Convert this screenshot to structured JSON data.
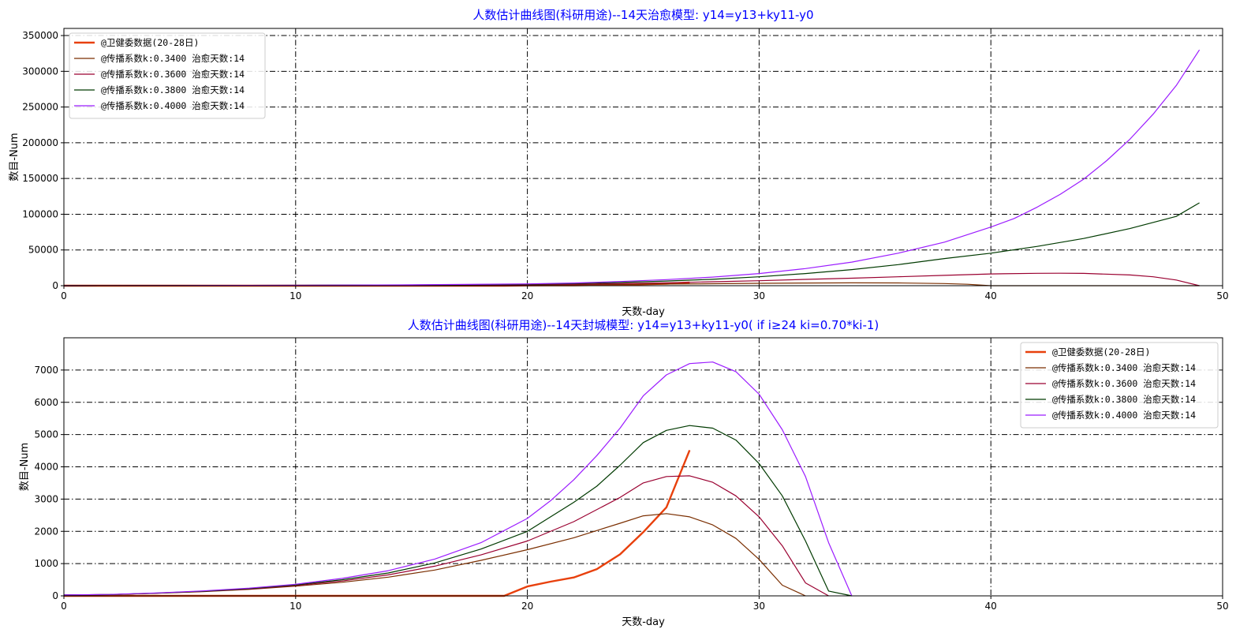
{
  "chart_data": [
    {
      "type": "line",
      "title": "人数估计曲线图(科研用途)--14天治愈模型: y14=y13+ky11-y0",
      "xlabel": "天数-day",
      "ylabel": "数目-Num",
      "xlim": [
        0,
        50
      ],
      "ylim": [
        0,
        360000
      ],
      "xticks": [
        0,
        10,
        20,
        30,
        40,
        50
      ],
      "yticks": [
        0,
        50000,
        100000,
        150000,
        200000,
        250000,
        300000,
        350000
      ],
      "grid": true,
      "legend_position": "top-left",
      "series": [
        {
          "name": "@卫健委数据(20-28日)",
          "color": "#e8400c",
          "width": 2.4,
          "x": [
            0,
            1,
            2,
            3,
            4,
            5,
            6,
            7,
            8,
            9,
            10,
            11,
            12,
            13,
            14,
            15,
            16,
            17,
            18,
            19,
            20,
            21,
            22,
            23,
            24,
            25,
            26,
            27
          ],
          "y": [
            0,
            0,
            0,
            0,
            0,
            0,
            0,
            0,
            0,
            0,
            0,
            0,
            0,
            0,
            0,
            0,
            0,
            0,
            0,
            0,
            291,
            440,
            571,
            830,
            1287,
            1975,
            2744,
            4515
          ]
        },
        {
          "name": "@传播系数k:0.3400 治愈天数:14",
          "color": "#7a2e00",
          "width": 1.2,
          "x": [
            0,
            5,
            10,
            15,
            20,
            22,
            24,
            26,
            28,
            30,
            32,
            34,
            36,
            38,
            39,
            40,
            42,
            44,
            46,
            48,
            49
          ],
          "y": [
            0,
            200,
            400,
            700,
            1100,
            1400,
            1800,
            2300,
            2800,
            3300,
            3700,
            4000,
            3900,
            3000,
            2000,
            0,
            0,
            0,
            0,
            0,
            0
          ]
        },
        {
          "name": "@传播系数k:0.3600 治愈天数:14",
          "color": "#9a0030",
          "width": 1.2,
          "x": [
            0,
            5,
            10,
            15,
            20,
            22,
            24,
            26,
            28,
            30,
            32,
            34,
            36,
            38,
            40,
            42,
            43,
            44,
            46,
            47,
            48,
            49
          ],
          "y": [
            0,
            200,
            400,
            800,
            1500,
            2000,
            3000,
            4000,
            5500,
            7000,
            8800,
            10500,
            12500,
            14500,
            16500,
            17300,
            17500,
            17200,
            15000,
            12500,
            8000,
            0
          ]
        },
        {
          "name": "@传播系数k:0.3800 治愈天数:14",
          "color": "#003a00",
          "width": 1.2,
          "x": [
            0,
            5,
            10,
            15,
            20,
            22,
            24,
            26,
            28,
            30,
            32,
            34,
            36,
            38,
            40,
            42,
            44,
            46,
            48,
            49
          ],
          "y": [
            0,
            200,
            500,
            1000,
            2000,
            3000,
            4500,
            6500,
            9000,
            12500,
            17000,
            22500,
            29500,
            38000,
            45500,
            55000,
            66000,
            80000,
            97000,
            116000
          ]
        },
        {
          "name": "@传播系数k:0.4000 治愈天数:14",
          "color": "#9b1cff",
          "width": 1.2,
          "x": [
            0,
            5,
            10,
            15,
            20,
            22,
            24,
            26,
            28,
            30,
            32,
            34,
            36,
            38,
            40,
            41,
            42,
            43,
            44,
            45,
            46,
            47,
            48,
            49
          ],
          "y": [
            0,
            200,
            600,
            1200,
            2500,
            3800,
            5800,
            8500,
            12000,
            17000,
            24000,
            33000,
            45500,
            61000,
            82000,
            94000,
            110000,
            128000,
            149000,
            175000,
            205000,
            240000,
            280000,
            330000
          ]
        }
      ]
    },
    {
      "type": "line",
      "title": "人数估计曲线图(科研用途)--14天封城模型: y14=y13+ky11-y0( if i≥24 ki=0.70*ki-1)",
      "xlabel": "天数-day",
      "ylabel": "数目-Num",
      "xlim": [
        0,
        50
      ],
      "ylim": [
        0,
        8000
      ],
      "xticks": [
        0,
        10,
        20,
        30,
        40,
        50
      ],
      "yticks": [
        0,
        1000,
        2000,
        3000,
        4000,
        5000,
        6000,
        7000
      ],
      "grid": true,
      "legend_position": "top-right",
      "series": [
        {
          "name": "@卫健委数据(20-28日)",
          "color": "#e8400c",
          "width": 2.4,
          "x": [
            0,
            1,
            2,
            3,
            4,
            5,
            6,
            7,
            8,
            9,
            10,
            11,
            12,
            13,
            14,
            15,
            16,
            17,
            18,
            19,
            20,
            21,
            22,
            23,
            24,
            25,
            26,
            27
          ],
          "y": [
            0,
            0,
            0,
            0,
            0,
            0,
            0,
            0,
            0,
            0,
            0,
            0,
            0,
            0,
            0,
            0,
            0,
            0,
            0,
            0,
            291,
            440,
            571,
            830,
            1287,
            1975,
            2744,
            4515
          ]
        },
        {
          "name": "@传播系数k:0.3400 治愈天数:14",
          "color": "#7a2e00",
          "width": 1.2,
          "x": [
            0,
            2,
            4,
            6,
            8,
            10,
            12,
            14,
            16,
            18,
            20,
            22,
            24,
            25,
            26,
            27,
            28,
            29,
            30,
            31,
            32
          ],
          "y": [
            30,
            40,
            80,
            130,
            200,
            300,
            420,
            580,
            800,
            1100,
            1430,
            1800,
            2250,
            2480,
            2550,
            2450,
            2200,
            1780,
            1130,
            330,
            0
          ]
        },
        {
          "name": "@传播系数k:0.3600 治愈天数:14",
          "color": "#9a0030",
          "width": 1.2,
          "x": [
            0,
            2,
            4,
            6,
            8,
            10,
            12,
            14,
            16,
            18,
            20,
            22,
            24,
            25,
            26,
            27,
            28,
            29,
            30,
            31,
            32,
            33
          ],
          "y": [
            30,
            40,
            80,
            140,
            210,
            320,
            460,
            650,
            920,
            1270,
            1700,
            2300,
            3050,
            3500,
            3700,
            3720,
            3520,
            3100,
            2450,
            1550,
            400,
            0
          ]
        },
        {
          "name": "@传播系数k:0.3800 治愈天数:14",
          "color": "#003a00",
          "width": 1.2,
          "x": [
            0,
            2,
            4,
            6,
            8,
            10,
            12,
            14,
            16,
            18,
            20,
            22,
            23,
            24,
            25,
            26,
            27,
            28,
            29,
            30,
            31,
            32,
            33,
            34
          ],
          "y": [
            30,
            40,
            85,
            145,
            225,
            340,
            500,
            710,
            1020,
            1450,
            2000,
            2900,
            3400,
            4050,
            4750,
            5130,
            5280,
            5200,
            4830,
            4100,
            3100,
            1700,
            150,
            0
          ]
        },
        {
          "name": "@传播系数k:0.4000 治愈天数:14",
          "color": "#9b1cff",
          "width": 1.2,
          "x": [
            0,
            2,
            4,
            6,
            8,
            10,
            12,
            14,
            16,
            18,
            20,
            21,
            22,
            23,
            24,
            25,
            26,
            27,
            28,
            29,
            30,
            31,
            32,
            33,
            34
          ],
          "y": [
            30,
            45,
            90,
            155,
            240,
            360,
            540,
            780,
            1140,
            1650,
            2400,
            2950,
            3600,
            4350,
            5200,
            6200,
            6850,
            7200,
            7250,
            6950,
            6250,
            5150,
            3700,
            1650,
            0
          ]
        }
      ]
    }
  ]
}
